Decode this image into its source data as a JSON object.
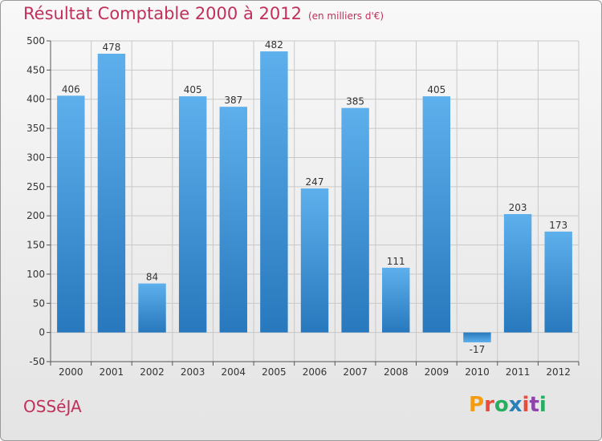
{
  "header": {
    "title": "Résultat Comptable 2000 à 2012",
    "subtitle": "(en milliers d'€)"
  },
  "footer": {
    "commune": "OSSéJA",
    "logo_letters": [
      "P",
      "r",
      "o",
      "x",
      "i",
      "t",
      "i"
    ],
    "logo_colors": [
      "#f39c12",
      "#e74c3c",
      "#27ae60",
      "#2980b9",
      "#e74c3c",
      "#8e44ad",
      "#27ae60"
    ]
  },
  "chart_data": {
    "type": "bar",
    "title": "Résultat Comptable 2000 à 2012",
    "subtitle": "(en milliers d'€)",
    "categories": [
      "2000",
      "2001",
      "2002",
      "2003",
      "2004",
      "2005",
      "2006",
      "2007",
      "2008",
      "2009",
      "2010",
      "2011",
      "2012"
    ],
    "values": [
      406,
      478,
      84,
      405,
      387,
      482,
      247,
      385,
      111,
      405,
      -17,
      203,
      173
    ],
    "ylim": [
      -50,
      500
    ],
    "yticks": [
      -50,
      0,
      50,
      100,
      150,
      200,
      250,
      300,
      350,
      400,
      450,
      500
    ],
    "grid": true,
    "bar_color": "#4a9ee0",
    "title_color": "#c0305a"
  }
}
